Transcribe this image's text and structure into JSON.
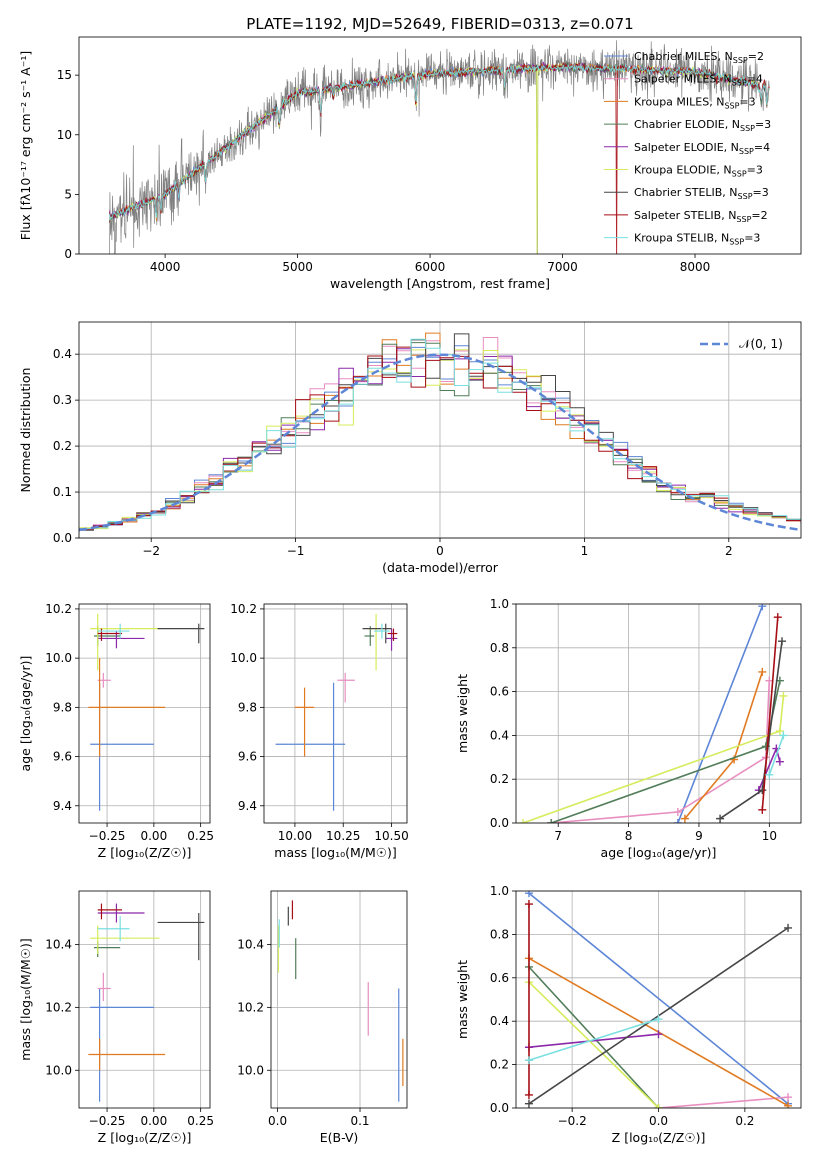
{
  "page_title": "PLATE=1192, MJD=52649, FIBERID=0313, z=0.071",
  "chart_data": [
    {
      "id": "spectrum",
      "type": "line",
      "xlabel": "wavelength [Angstrom, rest frame]",
      "ylabel": "Flux [fλ10⁻¹⁷ erg cm⁻² s⁻¹ A⁻¹]",
      "xlim": [
        3350,
        8800
      ],
      "ylim": [
        0,
        18.2
      ],
      "xticks": [
        4000,
        5000,
        6000,
        7000,
        8000
      ],
      "yticks": [
        0,
        5,
        10,
        15
      ],
      "grid": false,
      "legend": "upper-right",
      "series": [
        {
          "name": "Chabrier MILES, N",
          "sub": "SSP",
          "suffix": "=2",
          "color": "#5d86d6"
        },
        {
          "name": "Salpeter MILES, N",
          "sub": "SSP",
          "suffix": "=4",
          "color": "#e88ec0"
        },
        {
          "name": "Kroupa MILES, N",
          "sub": "SSP",
          "suffix": "=3",
          "color": "#e07b22"
        },
        {
          "name": "Chabrier ELODIE, N",
          "sub": "SSP",
          "suffix": "=3",
          "color": "#517d59"
        },
        {
          "name": "Salpeter ELODIE, N",
          "sub": "SSP",
          "suffix": "=4",
          "color": "#8b29a9"
        },
        {
          "name": "Kroupa ELODIE, N",
          "sub": "SSP",
          "suffix": "=3",
          "color": "#d6ec5c"
        },
        {
          "name": "Chabrier STELIB, N",
          "sub": "SSP",
          "suffix": "=3",
          "color": "#474747"
        },
        {
          "name": "Salpeter STELIB, N",
          "sub": "SSP",
          "suffix": "=2",
          "color": "#a60d14"
        },
        {
          "name": "Kroupa STELIB, N",
          "sub": "SSP",
          "suffix": "=3",
          "color": "#79dfe0"
        }
      ],
      "data_color": "#808080"
    },
    {
      "id": "residuals",
      "type": "histogram",
      "xlabel": "(data-model)/error",
      "ylabel": "Normed distribution",
      "xlim": [
        -2.5,
        2.5
      ],
      "ylim": [
        0,
        0.47
      ],
      "xticks": [
        -2,
        -1,
        0,
        1,
        2
      ],
      "yticks": [
        0.0,
        0.1,
        0.2,
        0.3,
        0.4
      ],
      "grid": true,
      "legend": "upper-right",
      "legend_label": "𝒩(0, 1)",
      "normal_color": "#5d86d6"
    },
    {
      "id": "age_vs_Z",
      "type": "errorbar",
      "xlabel": "Z [log₁₀(Z/Z☉)]",
      "ylabel": "age  [log₁₀(age/yr)]",
      "xlim": [
        -0.4,
        0.3
      ],
      "ylim": [
        9.33,
        10.22
      ],
      "xticks": [
        -0.25,
        0.0,
        0.25
      ],
      "yticks": [
        9.4,
        9.6,
        9.8,
        10.0,
        10.2
      ],
      "grid": true,
      "points": [
        {
          "x": -0.29,
          "y": 9.65,
          "xe": [
            0.05,
            0.29
          ],
          "ye": [
            0.27,
            0.25
          ],
          "color": "#5d86d6"
        },
        {
          "x": -0.27,
          "y": 9.91,
          "xe": [
            0.03,
            0.04
          ],
          "ye": [
            0.03,
            0.03
          ],
          "color": "#e88ec0"
        },
        {
          "x": -0.29,
          "y": 9.8,
          "xe": [
            0.06,
            0.35
          ],
          "ye": [
            0.2,
            0.2
          ],
          "color": "#e07b22"
        },
        {
          "x": -0.3,
          "y": 10.09,
          "xe": [
            0.02,
            0.12
          ],
          "ye": [
            0.04,
            0.04
          ],
          "color": "#517d59"
        },
        {
          "x": -0.2,
          "y": 10.08,
          "xe": [
            0.1,
            0.15
          ],
          "ye": [
            0.04,
            0.03
          ],
          "color": "#8b29a9"
        },
        {
          "x": -0.3,
          "y": 10.12,
          "xe": [
            0.04,
            0.33
          ],
          "ye": [
            0.17,
            0.06
          ],
          "color": "#d6ec5c"
        },
        {
          "x": 0.24,
          "y": 10.12,
          "xe": [
            0.22,
            0.03
          ],
          "ye": [
            0.06,
            0.02
          ],
          "color": "#474747"
        },
        {
          "x": -0.28,
          "y": 10.1,
          "xe": [
            0.02,
            0.11
          ],
          "ye": [
            0.03,
            0.02
          ],
          "color": "#a60d14"
        },
        {
          "x": -0.18,
          "y": 10.11,
          "xe": [
            0.12,
            0.05
          ],
          "ye": [
            0.03,
            0.03
          ],
          "color": "#79dfe0"
        }
      ]
    },
    {
      "id": "age_vs_mass",
      "type": "errorbar",
      "xlabel": "mass [log₁₀(M/M☉)]",
      "ylabel": "",
      "xlim": [
        9.84,
        10.58
      ],
      "ylim": [
        9.33,
        10.22
      ],
      "xticks": [
        10.0,
        10.25,
        10.5
      ],
      "yticks": [
        9.4,
        9.6,
        9.8,
        10.0,
        10.2
      ],
      "grid": true,
      "points": [
        {
          "x": 10.2,
          "y": 9.65,
          "xe": [
            0.3,
            0.06
          ],
          "ye": [
            0.27,
            0.25
          ],
          "color": "#5d86d6"
        },
        {
          "x": 10.26,
          "y": 9.91,
          "xe": [
            0.04,
            0.05
          ],
          "ye": [
            0.09,
            0.03
          ],
          "color": "#e88ec0"
        },
        {
          "x": 10.05,
          "y": 9.8,
          "xe": [
            0.05,
            0.05
          ],
          "ye": [
            0.2,
            0.08
          ],
          "color": "#e07b22"
        },
        {
          "x": 10.39,
          "y": 10.09,
          "xe": [
            0.03,
            0.02
          ],
          "ye": [
            0.04,
            0.04
          ],
          "color": "#517d59"
        },
        {
          "x": 10.5,
          "y": 10.08,
          "xe": [
            0.03,
            0.03
          ],
          "ye": [
            0.05,
            0.04
          ],
          "color": "#8b29a9"
        },
        {
          "x": 10.42,
          "y": 10.12,
          "xe": [
            0.05,
            0.04
          ],
          "ye": [
            0.17,
            0.06
          ],
          "color": "#d6ec5c"
        },
        {
          "x": 10.47,
          "y": 10.12,
          "xe": [
            0.12,
            0.03
          ],
          "ye": [
            0.06,
            0.02
          ],
          "color": "#474747"
        },
        {
          "x": 10.51,
          "y": 10.1,
          "xe": [
            0.03,
            0.02
          ],
          "ye": [
            0.03,
            0.02
          ],
          "color": "#a60d14"
        },
        {
          "x": 10.45,
          "y": 10.11,
          "xe": [
            0.04,
            0.04
          ],
          "ye": [
            0.03,
            0.03
          ],
          "color": "#79dfe0"
        }
      ]
    },
    {
      "id": "weight_vs_age",
      "type": "line",
      "xlabel": "age  [log₁₀(age/yr)]",
      "ylabel": "mass weight",
      "xlim": [
        6.4,
        10.45
      ],
      "ylim": [
        0,
        1.0
      ],
      "xticks": [
        7,
        8,
        9,
        10
      ],
      "yticks": [
        0.0,
        0.2,
        0.4,
        0.6,
        0.8,
        1.0
      ],
      "grid": true,
      "series": [
        {
          "color": "#5d86d6",
          "points": [
            [
              8.7,
              0.0
            ],
            [
              9.9,
              0.99
            ]
          ]
        },
        {
          "color": "#e88ec0",
          "points": [
            [
              6.9,
              0.0
            ],
            [
              8.7,
              0.05
            ],
            [
              9.95,
              0.3
            ],
            [
              10.0,
              0.65
            ]
          ]
        },
        {
          "color": "#e07b22",
          "points": [
            [
              8.8,
              0.02
            ],
            [
              9.5,
              0.29
            ],
            [
              9.9,
              0.69
            ]
          ]
        },
        {
          "color": "#517d59",
          "points": [
            [
              6.9,
              0.0
            ],
            [
              9.95,
              0.35
            ],
            [
              10.15,
              0.65
            ]
          ]
        },
        {
          "color": "#8b29a9",
          "points": [
            [
              9.85,
              0.15
            ],
            [
              10.1,
              0.34
            ],
            [
              10.15,
              0.28
            ]
          ]
        },
        {
          "color": "#d6ec5c",
          "points": [
            [
              6.5,
              0.0
            ],
            [
              10.15,
              0.42
            ],
            [
              10.2,
              0.58
            ]
          ]
        },
        {
          "color": "#474747",
          "points": [
            [
              9.3,
              0.02
            ],
            [
              9.9,
              0.15
            ],
            [
              10.18,
              0.83
            ]
          ]
        },
        {
          "color": "#a60d14",
          "points": [
            [
              9.9,
              0.06
            ],
            [
              10.12,
              0.94
            ]
          ]
        },
        {
          "color": "#79dfe0",
          "points": [
            [
              10.0,
              0.22
            ],
            [
              10.2,
              0.4
            ]
          ]
        }
      ]
    },
    {
      "id": "mass_vs_Z",
      "type": "errorbar",
      "xlabel": "Z [log₁₀(Z/Z☉)]",
      "ylabel": "mass [log₁₀(M/M☉)]",
      "xlim": [
        -0.4,
        0.3
      ],
      "ylim": [
        9.88,
        10.57
      ],
      "xticks": [
        -0.25,
        0.0,
        0.25
      ],
      "yticks": [
        10.0,
        10.2,
        10.4
      ],
      "grid": true,
      "points": [
        {
          "x": -0.29,
          "y": 10.2,
          "xe": [
            0.05,
            0.29
          ],
          "ye": [
            0.3,
            0.06
          ],
          "color": "#5d86d6"
        },
        {
          "x": -0.27,
          "y": 10.26,
          "xe": [
            0.03,
            0.04
          ],
          "ye": [
            0.04,
            0.05
          ],
          "color": "#e88ec0"
        },
        {
          "x": -0.29,
          "y": 10.05,
          "xe": [
            0.06,
            0.35
          ],
          "ye": [
            0.05,
            0.05
          ],
          "color": "#e07b22"
        },
        {
          "x": -0.3,
          "y": 10.39,
          "xe": [
            0.02,
            0.12
          ],
          "ye": [
            0.03,
            0.02
          ],
          "color": "#517d59"
        },
        {
          "x": -0.2,
          "y": 10.5,
          "xe": [
            0.1,
            0.15
          ],
          "ye": [
            0.03,
            0.03
          ],
          "color": "#8b29a9"
        },
        {
          "x": -0.3,
          "y": 10.42,
          "xe": [
            0.04,
            0.33
          ],
          "ye": [
            0.05,
            0.04
          ],
          "color": "#d6ec5c"
        },
        {
          "x": 0.24,
          "y": 10.47,
          "xe": [
            0.22,
            0.03
          ],
          "ye": [
            0.12,
            0.03
          ],
          "color": "#474747"
        },
        {
          "x": -0.28,
          "y": 10.51,
          "xe": [
            0.02,
            0.11
          ],
          "ye": [
            0.03,
            0.02
          ],
          "color": "#a60d14"
        },
        {
          "x": -0.18,
          "y": 10.45,
          "xe": [
            0.12,
            0.05
          ],
          "ye": [
            0.04,
            0.04
          ],
          "color": "#79dfe0"
        }
      ]
    },
    {
      "id": "mass_vs_ebv",
      "type": "errorbar",
      "xlabel": "E(B-V)",
      "ylabel": "",
      "xlim": [
        -0.008,
        0.157
      ],
      "ylim": [
        9.88,
        10.57
      ],
      "xticks": [
        0.0,
        0.1
      ],
      "yticks": [
        10.0,
        10.2,
        10.4
      ],
      "grid": true,
      "points": [
        {
          "x": 0.147,
          "y": 10.04,
          "xe": [
            0,
            0
          ],
          "ye": [
            0.14,
            0.22
          ],
          "color": "#5d86d6"
        },
        {
          "x": 0.11,
          "y": 10.18,
          "xe": [
            0,
            0
          ],
          "ye": [
            0.07,
            0.1
          ],
          "color": "#e88ec0"
        },
        {
          "x": 0.152,
          "y": 10.02,
          "xe": [
            0,
            0
          ],
          "ye": [
            0.07,
            0.08
          ],
          "color": "#e07b22"
        },
        {
          "x": 0.022,
          "y": 10.36,
          "xe": [
            0,
            0
          ],
          "ye": [
            0.07,
            0.06
          ],
          "color": "#517d59"
        },
        {
          "x": 0.013,
          "y": 10.49,
          "xe": [
            0,
            0
          ],
          "ye": [
            0.03,
            0.03
          ],
          "color": "#474747"
        },
        {
          "x": 0.018,
          "y": 10.51,
          "xe": [
            0,
            0
          ],
          "ye": [
            0.03,
            0.03
          ],
          "color": "#a60d14"
        },
        {
          "x": 0.001,
          "y": 10.39,
          "xe": [
            0,
            0
          ],
          "ye": [
            0.08,
            0.07
          ],
          "color": "#d6ec5c"
        },
        {
          "x": 0.002,
          "y": 10.44,
          "xe": [
            0,
            0
          ],
          "ye": [
            0.05,
            0.04
          ],
          "color": "#79dfe0"
        }
      ]
    },
    {
      "id": "weight_vs_Z",
      "type": "line",
      "xlabel": "Z [log₁₀(Z/Z☉)]",
      "ylabel": "mass weight",
      "xlim": [
        -0.33,
        0.33
      ],
      "ylim": [
        0,
        1.0
      ],
      "xticks": [
        -0.2,
        0.0,
        0.2
      ],
      "yticks": [
        0.0,
        0.2,
        0.4,
        0.6,
        0.8,
        1.0
      ],
      "grid": true,
      "series": [
        {
          "color": "#5d86d6",
          "points": [
            [
              -0.3,
              0.99
            ],
            [
              0.3,
              0.02
            ]
          ]
        },
        {
          "color": "#e88ec0",
          "points": [
            [
              0.0,
              0.0
            ],
            [
              0.3,
              0.05
            ]
          ]
        },
        {
          "color": "#e07b22",
          "points": [
            [
              -0.3,
              0.69
            ],
            [
              0.3,
              0.01
            ]
          ]
        },
        {
          "color": "#517d59",
          "points": [
            [
              -0.3,
              0.65
            ],
            [
              0.0,
              0.0
            ]
          ]
        },
        {
          "color": "#8b29a9",
          "points": [
            [
              -0.3,
              0.28
            ],
            [
              0.0,
              0.34
            ]
          ]
        },
        {
          "color": "#d6ec5c",
          "points": [
            [
              -0.3,
              0.58
            ],
            [
              0.0,
              0.0
            ]
          ]
        },
        {
          "color": "#474747",
          "points": [
            [
              -0.3,
              0.02
            ],
            [
              0.3,
              0.83
            ]
          ]
        },
        {
          "color": "#a60d14",
          "points": [
            [
              -0.3,
              0.94
            ],
            [
              -0.3,
              0.06
            ]
          ]
        },
        {
          "color": "#79dfe0",
          "points": [
            [
              -0.3,
              0.22
            ],
            [
              0.0,
              0.41
            ]
          ]
        }
      ]
    }
  ]
}
